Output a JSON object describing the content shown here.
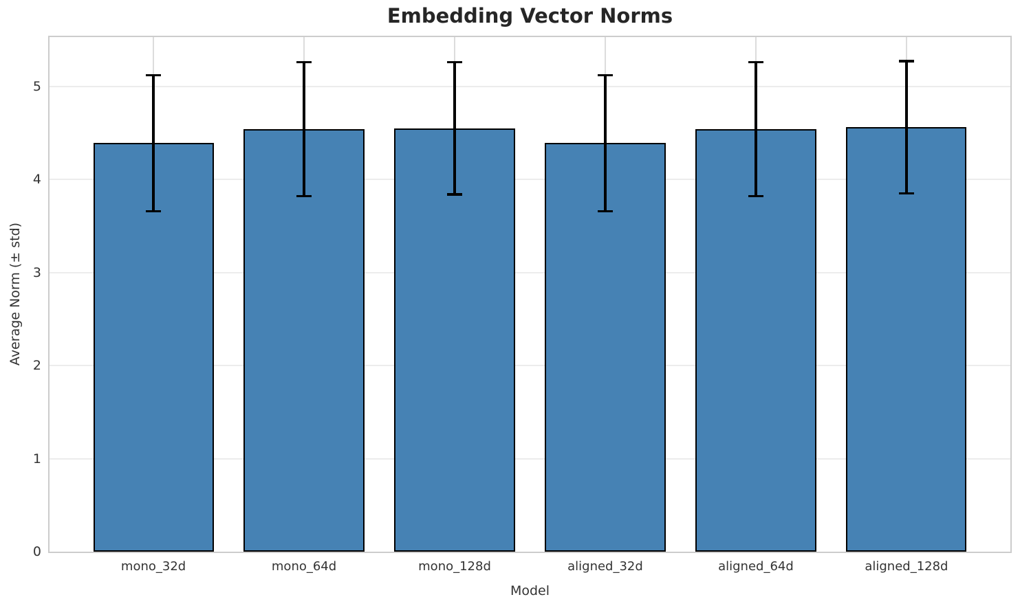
{
  "figure": {
    "title": "Embedding Vector Norms",
    "xlabel": "Model",
    "ylabel": "Average Norm (± std)"
  },
  "colors": {
    "background": "#ffffff",
    "bar_fill": "#4682b4",
    "bar_edge": "#000000",
    "error_bar": "#000000",
    "grid_horizontal": "#ececec",
    "grid_vertical": "#dcdcdc",
    "spine": "#cccccc",
    "tick_text": "#333333",
    "title_text": "#262626"
  },
  "chart_data": {
    "type": "bar",
    "title": "Embedding Vector Norms",
    "xlabel": "Model",
    "ylabel": "Average Norm (± std)",
    "categories": [
      "mono_32d",
      "mono_64d",
      "mono_128d",
      "aligned_32d",
      "aligned_64d",
      "aligned_128d"
    ],
    "series": [
      {
        "name": "Average Norm",
        "values": [
          4.39,
          4.54,
          4.55,
          4.39,
          4.54,
          4.56
        ],
        "errors": [
          0.73,
          0.72,
          0.71,
          0.73,
          0.72,
          0.71
        ]
      }
    ],
    "yticks": [
      0,
      1,
      2,
      3,
      4,
      5
    ],
    "ylim": [
      0,
      5.53
    ],
    "xlim_units": [
      -0.69,
      5.69
    ],
    "bar_width_units": 0.8,
    "grid": true,
    "legend_position": "none",
    "error_bars": "±std with caps"
  }
}
